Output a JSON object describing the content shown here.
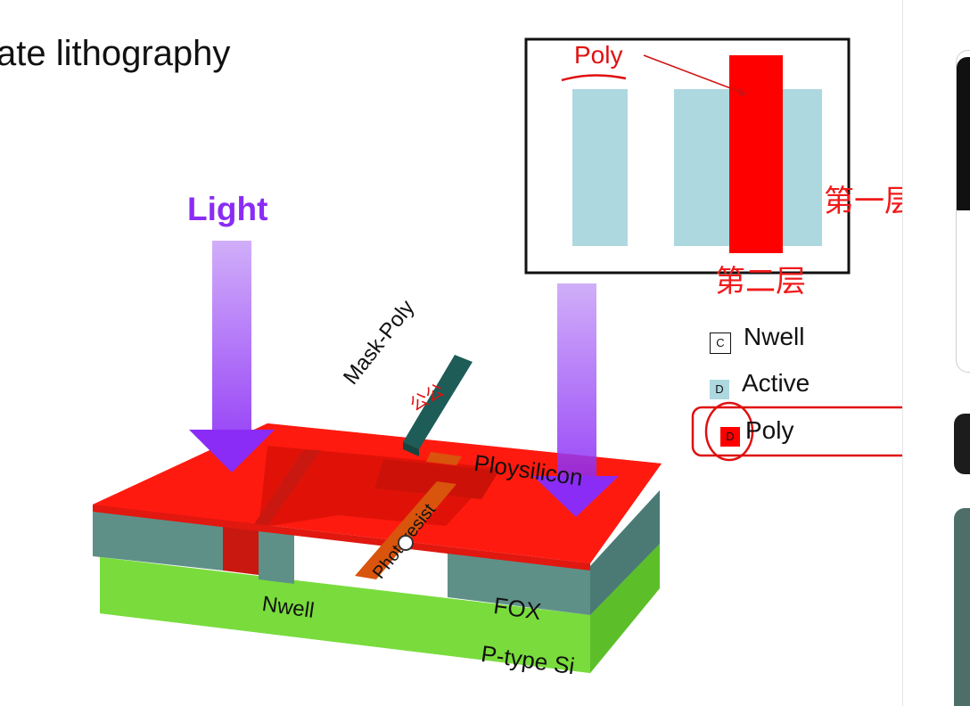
{
  "slide": {
    "title": "ate lithography",
    "light_label": "Light"
  },
  "mask_diagram": {
    "poly_label": "Poly",
    "layer_one": "第一层",
    "layer_two": "第二层"
  },
  "legend": [
    {
      "key": "C",
      "label": "Nwell",
      "color": "#ffffff"
    },
    {
      "key": "D",
      "label": "Active",
      "color": "#add8e0"
    },
    {
      "key": "D",
      "label": "Poly",
      "color": "#ff0000"
    }
  ],
  "wafer_labels": {
    "mask": "Mask-Poly",
    "mask_annotation": "公公",
    "photoresist": "Photoresist",
    "polysilicon": "Ploysilicon",
    "nwell": "Nwell",
    "fox": "FOX",
    "substrate": "P-type Si"
  },
  "colors": {
    "poly_red": "#ff1a10",
    "fox_teal": "#5e9088",
    "substrate_green": "#79dc3c",
    "mask_teal": "#1e5c58",
    "photoresist_orange": "#d9540c",
    "light_purple": "#8b2cf5",
    "active_blue": "#add8e0",
    "annotation_red": "#f01a1a"
  }
}
